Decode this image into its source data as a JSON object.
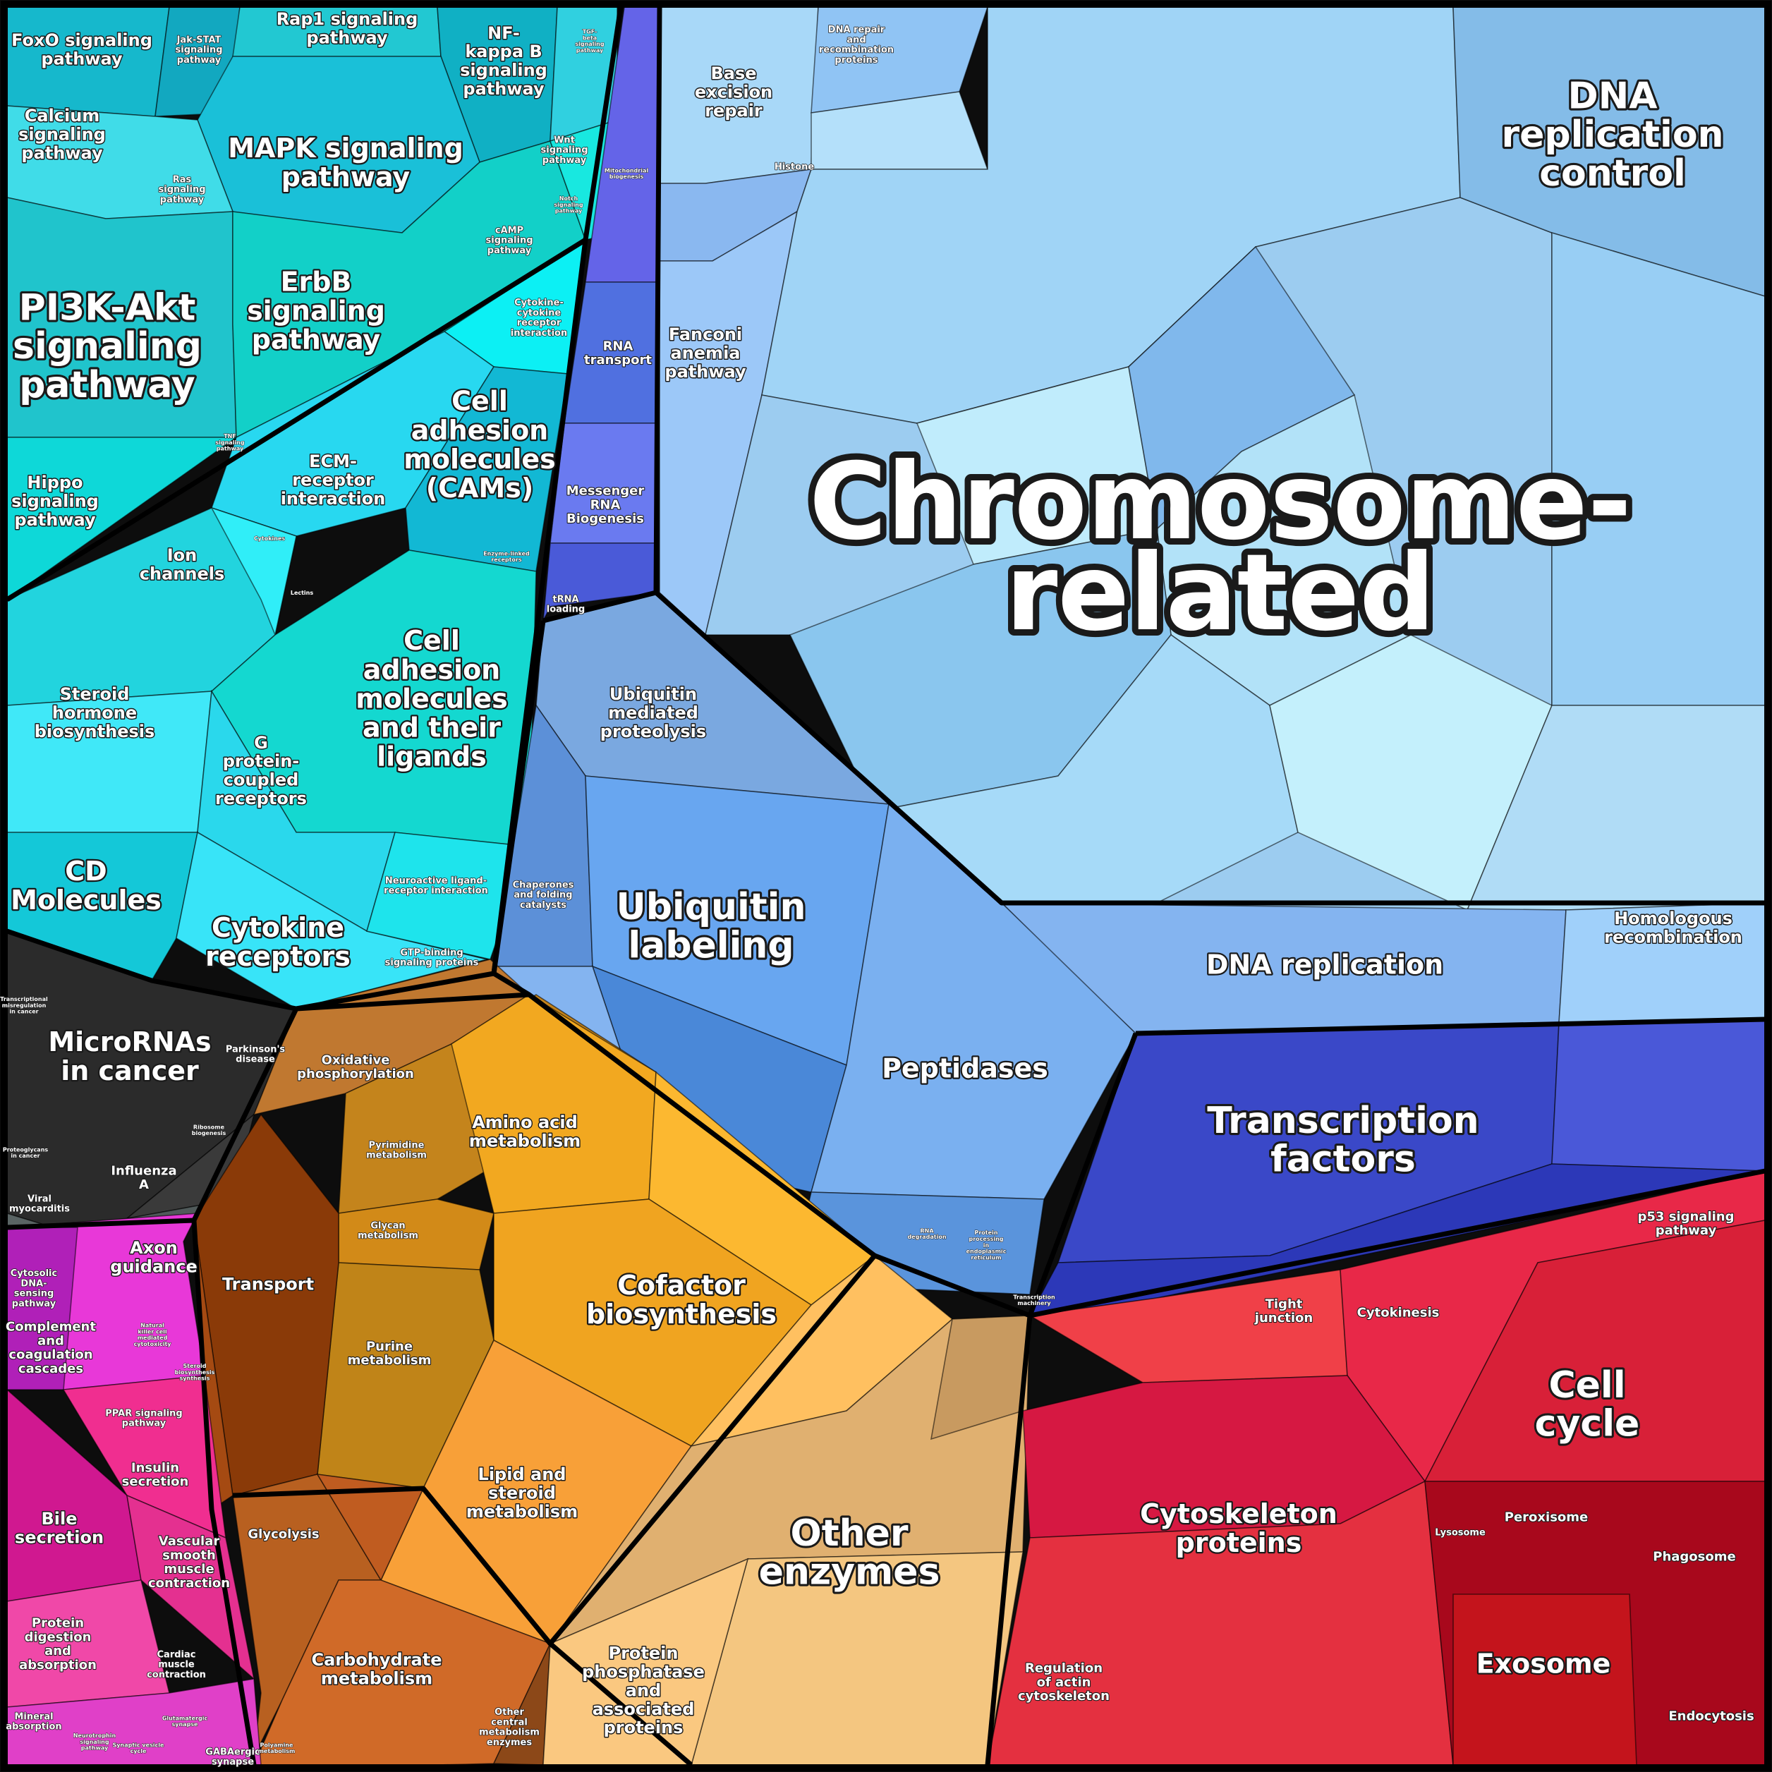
{
  "diagram": {
    "type": "proteomaps-voronoi-treemap",
    "colors": {
      "background": "#0d0d0d",
      "signaling": "#19c8d8",
      "genetic_info": "#6a78e8",
      "chromosome": "#8cc8f0",
      "ubiquitin": "#6aa0e8",
      "transcription": "#3c44c8",
      "metabolism": "#f0a020",
      "other_enzymes": "#e0b070",
      "transport": "#9a4a10",
      "carbohydrate": "#c06020",
      "cellular": "#e8283c",
      "organismal": "#e028c0",
      "disease": "#2a2a2a"
    },
    "regions": [
      {
        "id": "pi3k",
        "label": "PI3K-Akt\nsignaling\npathway",
        "size": "xl"
      },
      {
        "id": "mapk",
        "label": "MAPK signaling\npathway",
        "size": "l"
      },
      {
        "id": "erbb",
        "label": "ErbB\nsignaling\npathway",
        "size": "l"
      },
      {
        "id": "foxo",
        "label": "FoxO signaling\npathway",
        "size": "m"
      },
      {
        "id": "jakstat",
        "label": "Jak-STAT\nsignaling\npathway",
        "size": "xs"
      },
      {
        "id": "rap1",
        "label": "Rap1 signaling\npathway",
        "size": "m"
      },
      {
        "id": "nfkb",
        "label": "NF-\nkappa B\nsignaling\npathway",
        "size": "m"
      },
      {
        "id": "tgfb",
        "label": "TGF-\nbeta\nsignaling\npathway",
        "size": "xxs"
      },
      {
        "id": "calcium",
        "label": "Calcium\nsignaling\npathway",
        "size": "m"
      },
      {
        "id": "ras",
        "label": "Ras\nsignaling\npathway",
        "size": "xs"
      },
      {
        "id": "wnt",
        "label": "Wnt\nsignaling\npathway",
        "size": "xs"
      },
      {
        "id": "notch",
        "label": "Notch\nsignaling\npathway",
        "size": "xxs"
      },
      {
        "id": "camp",
        "label": "cAMP\nsignaling\npathway",
        "size": "xs"
      },
      {
        "id": "cytoreceptor",
        "label": "Cytokine-\ncytokine\nreceptor\ninteraction",
        "size": "xs"
      },
      {
        "id": "tnf",
        "label": "TNF\nsignaling\npathway",
        "size": "xxs"
      },
      {
        "id": "hippo",
        "label": "Hippo\nsignaling\npathway",
        "size": "m"
      },
      {
        "id": "ecm",
        "label": "ECM-\nreceptor\ninteraction",
        "size": "m"
      },
      {
        "id": "cams",
        "label": "Cell\nadhesion\nmolecules\n(CAMs)",
        "size": "l"
      },
      {
        "id": "ion",
        "label": "Ion\nchannels",
        "size": "m"
      },
      {
        "id": "cytokines",
        "label": "Cytokines",
        "size": "xxs"
      },
      {
        "id": "enzlinked",
        "label": "Enzyme-linked\nreceptors",
        "size": "xxs"
      },
      {
        "id": "lectins",
        "label": "Lectins",
        "size": "xxs"
      },
      {
        "id": "camlig",
        "label": "Cell\nadhesion\nmolecules\nand their\nligands",
        "size": "l"
      },
      {
        "id": "steroid",
        "label": "Steroid\nhormone\nbiosynthesis",
        "size": "m"
      },
      {
        "id": "gpcr",
        "label": "G\nprotein-\ncoupled\nreceptors",
        "size": "m"
      },
      {
        "id": "neuro",
        "label": "Neuroactive ligand-\nreceptor interaction",
        "size": "xs"
      },
      {
        "id": "cd",
        "label": "CD\nMolecules",
        "size": "l"
      },
      {
        "id": "cytorec",
        "label": "Cytokine\nreceptors",
        "size": "l"
      },
      {
        "id": "gtp",
        "label": "GTP-binding\nsignaling proteins",
        "size": "xs"
      },
      {
        "id": "base",
        "label": "Base\nexcision\nrepair",
        "size": "m"
      },
      {
        "id": "dnarep",
        "label": "DNA repair\nand\nrecombination\nproteins",
        "size": "xs"
      },
      {
        "id": "histone",
        "label": "Histone",
        "size": "xs"
      },
      {
        "id": "mito",
        "label": "Mitochondrial\nbiogenesis",
        "size": "xxs"
      },
      {
        "id": "fanconi",
        "label": "Fanconi\nanemia\npathway",
        "size": "m"
      },
      {
        "id": "rnatrans",
        "label": "RNA\ntransport",
        "size": "s"
      },
      {
        "id": "mrna",
        "label": "Messenger\nRNA\nBiogenesis",
        "size": "s"
      },
      {
        "id": "trna",
        "label": "tRNA\nloading",
        "size": "xs"
      },
      {
        "id": "chrom",
        "label": "Chromosome-\nrelated",
        "size": "xxl"
      },
      {
        "id": "dnactrl",
        "label": "DNA\nreplication\ncontrol",
        "size": "xl"
      },
      {
        "id": "ubiprot",
        "label": "Ubiquitin\nmediated\nproteolysis",
        "size": "m"
      },
      {
        "id": "ubilab",
        "label": "Ubiquitin\nlabeling",
        "size": "xl"
      },
      {
        "id": "chap",
        "label": "Chaperones\nand folding\ncatalysts",
        "size": "xs"
      },
      {
        "id": "pept",
        "label": "Peptidases",
        "size": "l"
      },
      {
        "id": "dnarepl",
        "label": "DNA replication",
        "size": "l"
      },
      {
        "id": "homrec",
        "label": "Homologous\nrecombination",
        "size": "m"
      },
      {
        "id": "tf",
        "label": "Transcription\nfactors",
        "size": "xl"
      },
      {
        "id": "rnadeg",
        "label": "RNA\ndegradation",
        "size": "xxs"
      },
      {
        "id": "protproc",
        "label": "Protein\nprocessing\nin\nendoplasmic\nreticulum",
        "size": "xxs"
      },
      {
        "id": "transmach",
        "label": "Transcription\nmachinery",
        "size": "xxs"
      },
      {
        "id": "mirna",
        "label": "MicroRNAs\nin cancer",
        "size": "l"
      },
      {
        "id": "transmis",
        "label": "Transcriptional\nmisregulation\nin cancer",
        "size": "xxs"
      },
      {
        "id": "parkinson",
        "label": "Parkinson's\ndisease",
        "size": "xs"
      },
      {
        "id": "proteo",
        "label": "Proteoglycans\nin cancer",
        "size": "xxs"
      },
      {
        "id": "influenza",
        "label": "Influenza\nA",
        "size": "s"
      },
      {
        "id": "viral",
        "label": "Viral\nmyocarditis",
        "size": "xs"
      },
      {
        "id": "oxphos",
        "label": "Oxidative\nphosphorylation",
        "size": "s"
      },
      {
        "id": "pyrim",
        "label": "Pyrimidine\nmetabolism",
        "size": "xs"
      },
      {
        "id": "aa",
        "label": "Amino acid\nmetabolism",
        "size": "m"
      },
      {
        "id": "glycan",
        "label": "Glycan\nmetabolism",
        "size": "xs"
      },
      {
        "id": "cofactor",
        "label": "Cofactor\nbiosynthesis",
        "size": "l"
      },
      {
        "id": "transport",
        "label": "Transport",
        "size": "m"
      },
      {
        "id": "purine",
        "label": "Purine\nmetabolism",
        "size": "s"
      },
      {
        "id": "lipid",
        "label": "Lipid and\nsteroid\nmetabolism",
        "size": "m"
      },
      {
        "id": "otherenz",
        "label": "Other\nenzymes",
        "size": "xl"
      },
      {
        "id": "glycolysis",
        "label": "Glycolysis",
        "size": "s"
      },
      {
        "id": "carb",
        "label": "Carbohydrate\nmetabolism",
        "size": "m"
      },
      {
        "id": "othercentral",
        "label": "Other\ncentral\nmetabolism\nenzymes",
        "size": "xs"
      },
      {
        "id": "protphos",
        "label": "Protein\nphosphatase\nand\nassociated\nproteins",
        "size": "m"
      },
      {
        "id": "axon",
        "label": "Axon\nguidance",
        "size": "m"
      },
      {
        "id": "cytosolic",
        "label": "Cytosolic\nDNA-\nsensing\npathway",
        "size": "xs"
      },
      {
        "id": "complement",
        "label": "Complement\nand\ncoagulation\ncascades",
        "size": "s"
      },
      {
        "id": "nk",
        "label": "Natural\nkiller cell\nmediated\ncytotoxicity",
        "size": "xxs"
      },
      {
        "id": "steroidbio",
        "label": "Steroid\nbiosynthesis\nsynthesis",
        "size": "xxs"
      },
      {
        "id": "ppar",
        "label": "PPAR signaling\npathway",
        "size": "xs"
      },
      {
        "id": "insulin",
        "label": "Insulin\nsecretion",
        "size": "s"
      },
      {
        "id": "bile",
        "label": "Bile\nsecretion",
        "size": "m"
      },
      {
        "id": "vascular",
        "label": "Vascular\nsmooth\nmuscle\ncontraction",
        "size": "s"
      },
      {
        "id": "protdig",
        "label": "Protein\ndigestion\nand\nabsorption",
        "size": "s"
      },
      {
        "id": "cardiac",
        "label": "Cardiac\nmuscle\ncontraction",
        "size": "xs"
      },
      {
        "id": "mineral",
        "label": "Mineral\nabsorption",
        "size": "xs"
      },
      {
        "id": "neurotroph",
        "label": "Neurotrophin\nsignaling\npathway",
        "size": "xxs"
      },
      {
        "id": "synvesicle",
        "label": "Synaptic vesicle\ncycle",
        "size": "xxs"
      },
      {
        "id": "glutamate",
        "label": "Glutamatergic\nsynapse",
        "size": "xxs"
      },
      {
        "id": "gaba",
        "label": "GABAergic\nsynapse",
        "size": "xs"
      },
      {
        "id": "polyamine",
        "label": "Polyamine\nmetabolism",
        "size": "xxs"
      },
      {
        "id": "ribosome",
        "label": "Ribosome\nbiogenesis",
        "size": "xxs"
      },
      {
        "id": "tight",
        "label": "Tight\njunction",
        "size": "s"
      },
      {
        "id": "cytokinesis",
        "label": "Cytokinesis",
        "size": "s"
      },
      {
        "id": "p53",
        "label": "p53 signaling\npathway",
        "size": "s"
      },
      {
        "id": "cellcycle",
        "label": "Cell\ncycle",
        "size": "xl"
      },
      {
        "id": "cytoskel",
        "label": "Cytoskeleton\nproteins",
        "size": "l"
      },
      {
        "id": "lysosome",
        "label": "Lysosome",
        "size": "xs"
      },
      {
        "id": "peroxisome",
        "label": "Peroxisome",
        "size": "s"
      },
      {
        "id": "phagosome",
        "label": "Phagosome",
        "size": "s"
      },
      {
        "id": "regactin",
        "label": "Regulation\nof actin\ncytoskeleton",
        "size": "s"
      },
      {
        "id": "exosome",
        "label": "Exosome",
        "size": "l"
      },
      {
        "id": "endocytosis",
        "label": "Endocytosis",
        "size": "s"
      }
    ]
  }
}
